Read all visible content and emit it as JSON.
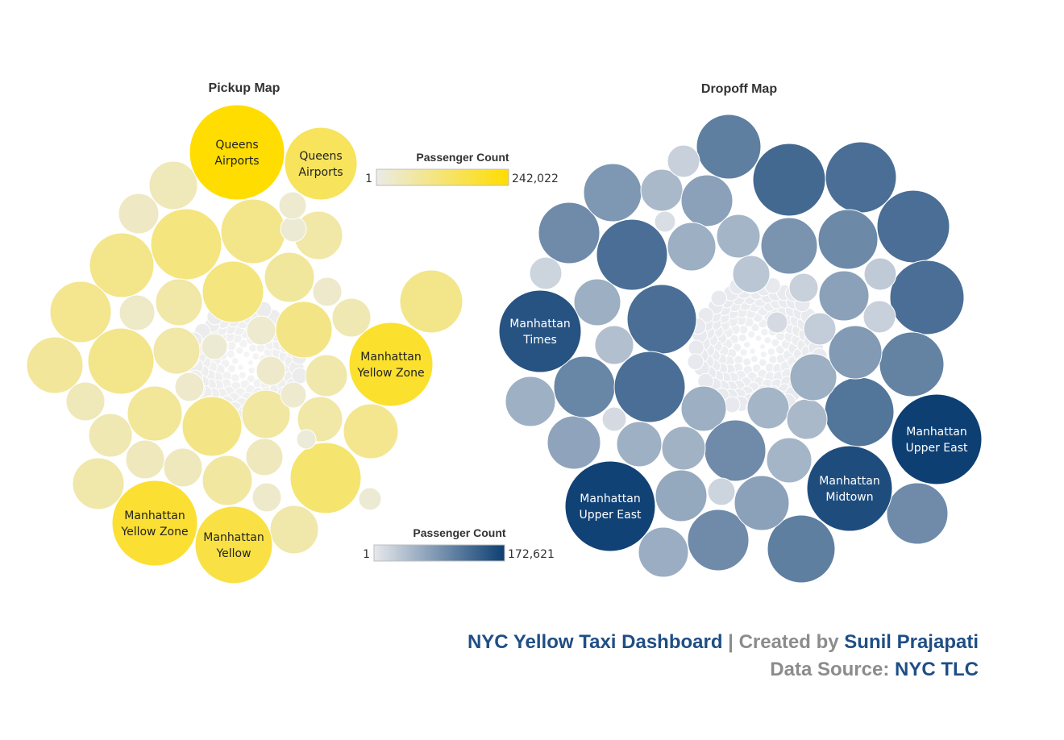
{
  "chart_data": [
    {
      "type": "bubble",
      "title": "Pickup Map",
      "color_legend": {
        "title": "Passenger Count",
        "min": 1,
        "max": 242022,
        "min_label": "1",
        "max_label": "242,022",
        "low_color": "#ebebe6",
        "high_color": "#ffdd00"
      },
      "labeled_bubbles": [
        {
          "label": [
            "Queens",
            "Airports"
          ],
          "value": 242022
        },
        {
          "label": [
            "Queens",
            "Airports"
          ],
          "value": 120000
        },
        {
          "label": [
            "Manhattan",
            "Yellow Zone"
          ],
          "value": 160000
        },
        {
          "label": [
            "Manhattan",
            "Yellow Zone"
          ],
          "value": 150000
        },
        {
          "label": [
            "Manhattan",
            "Yellow"
          ],
          "value": 140000
        }
      ]
    },
    {
      "type": "bubble",
      "title": "Dropoff Map",
      "color_legend": {
        "title": "Passenger Count",
        "min": 1,
        "max": 172621,
        "min_label": "1",
        "max_label": "172,621",
        "low_color": "#e6e8ec",
        "high_color": "#0d3f73"
      },
      "labeled_bubbles": [
        {
          "label": [
            "Manhattan",
            "Times"
          ],
          "value": 140000
        },
        {
          "label": [
            "Manhattan",
            "Upper East"
          ],
          "value": 172621
        },
        {
          "label": [
            "Manhattan",
            "Upper East"
          ],
          "value": 165000
        },
        {
          "label": [
            "Manhattan",
            "Midtown"
          ],
          "value": 150000
        }
      ]
    }
  ],
  "footer": {
    "line1_title": "NYC Yellow Taxi Dashboard",
    "line1_sep": " | ",
    "line1_created": "Created by ",
    "line1_author": "Sunil Prajapati",
    "line2_label": "Data Source: ",
    "line2_source": "NYC TLC"
  }
}
